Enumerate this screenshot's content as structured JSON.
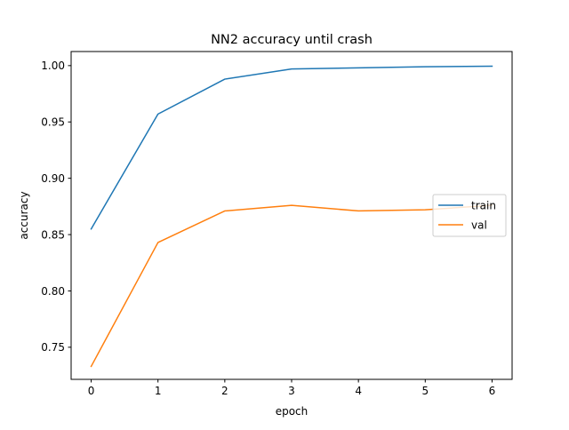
{
  "chart_data": {
    "type": "line",
    "title": "NN2 accuracy until crash",
    "xlabel": "epoch",
    "ylabel": "accuracy",
    "x": [
      0,
      1,
      2,
      3,
      4,
      5,
      6
    ],
    "xticks": [
      0,
      1,
      2,
      3,
      4,
      5,
      6
    ],
    "yticks": [
      0.75,
      0.8,
      0.85,
      0.9,
      0.95,
      1.0
    ],
    "ytick_labels": [
      "0.75",
      "0.80",
      "0.85",
      "0.90",
      "0.95",
      "1.00"
    ],
    "xlim": [
      -0.3,
      6.3
    ],
    "ylim": [
      0.7215,
      1.0125
    ],
    "grid": false,
    "legend_position": "center-right",
    "series": [
      {
        "name": "train",
        "color": "#1f77b4",
        "values": [
          0.855,
          0.957,
          0.988,
          0.997,
          0.998,
          0.999,
          0.9995
        ]
      },
      {
        "name": "val",
        "color": "#ff7f0e",
        "values": [
          0.733,
          0.843,
          0.871,
          0.876,
          0.871,
          0.872,
          0.876
        ]
      }
    ]
  }
}
